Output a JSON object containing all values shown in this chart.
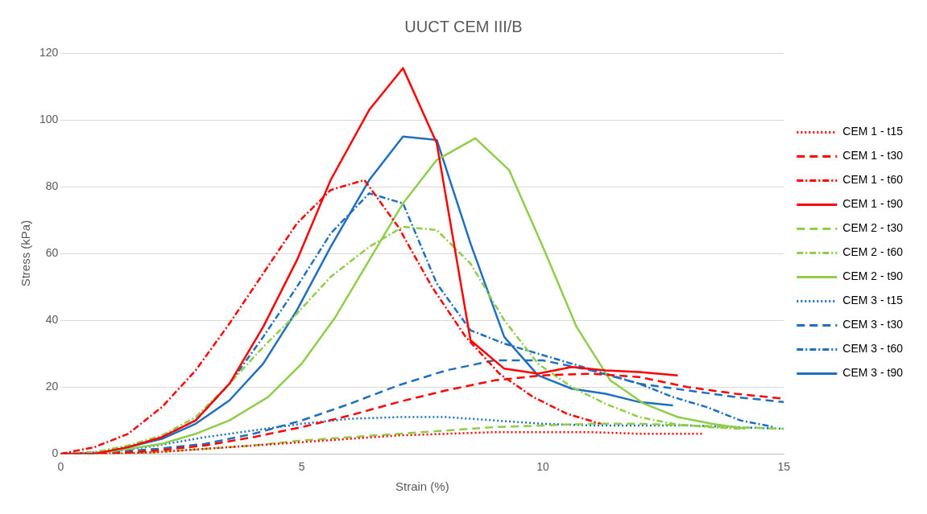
{
  "chart_data": {
    "type": "line",
    "title": "UUCT CEM III/B",
    "xlabel": "Strain (%)",
    "ylabel": "Stress (kPa)",
    "xlim": [
      0,
      15
    ],
    "xticks": [
      0,
      5,
      10,
      15
    ],
    "ylim": [
      0,
      120
    ],
    "yticks": [
      0,
      20,
      40,
      60,
      80,
      100,
      120
    ],
    "grid": "y",
    "legend": "right",
    "marker": "none",
    "series": [
      {
        "name": "CEM 1 - t15",
        "color": "#ff0000",
        "line_style": "dotted",
        "x": [
          0,
          1,
          2,
          3,
          4,
          5,
          6,
          7,
          8,
          9,
          10,
          11,
          12,
          13,
          13.3
        ],
        "values": [
          0,
          0,
          0.5,
          1.5,
          2.5,
          3.5,
          4.5,
          5.5,
          6,
          6.5,
          6.5,
          6.5,
          6,
          6,
          6
        ]
      },
      {
        "name": "CEM 1 - t30",
        "color": "#ff0000",
        "line_style": "dashed",
        "x": [
          0,
          1,
          2,
          3,
          4,
          5,
          6,
          7,
          8,
          9,
          10,
          11,
          12,
          13,
          14,
          15
        ],
        "values": [
          0,
          0,
          1,
          2.5,
          5,
          8,
          11.5,
          15.5,
          19,
          22,
          23.5,
          24,
          23,
          20,
          18,
          16.5
        ]
      },
      {
        "name": "CEM 1 - t60",
        "color": "#ff0000",
        "line_style": "dashdot",
        "x": [
          0,
          0.7,
          1.4,
          2.1,
          2.8,
          3.5,
          4.2,
          4.9,
          5.6,
          6.3,
          7,
          7.7,
          8.4,
          9.1,
          9.8,
          10.5,
          11.2
        ],
        "values": [
          0,
          2,
          6,
          14,
          25,
          39,
          54,
          69,
          79,
          82,
          68,
          50,
          35,
          24,
          17,
          12,
          9
        ]
      },
      {
        "name": "CEM 1 - t90",
        "color": "#ff0000",
        "line_style": "solid",
        "x": [
          0,
          0.7,
          1.4,
          2.1,
          2.8,
          3.5,
          4.2,
          4.9,
          5.6,
          6.4,
          7.1,
          7.8,
          8.5,
          9.2,
          9.9,
          10.6,
          11.3,
          12,
          12.8
        ],
        "values": [
          0,
          0,
          2,
          5,
          10,
          21,
          38,
          58,
          82,
          103,
          115.5,
          93,
          34,
          25.5,
          24,
          26,
          25,
          24.5,
          23.5
        ]
      },
      {
        "name": "CEM 2 - t30",
        "color": "#8fce4a",
        "line_style": "dashed",
        "x": [
          0,
          1,
          2,
          3,
          4,
          5,
          6,
          7,
          8,
          9,
          10,
          11,
          12,
          13,
          14,
          15
        ],
        "values": [
          0,
          0,
          0.5,
          1.5,
          2.5,
          4,
          5,
          6,
          7,
          8,
          8.5,
          9,
          9,
          8.5,
          8,
          7.5
        ]
      },
      {
        "name": "CEM 2 - t60",
        "color": "#8fce4a",
        "line_style": "dashdot",
        "x": [
          0,
          0.7,
          1.4,
          2.1,
          2.8,
          3.5,
          4.2,
          4.9,
          5.6,
          6.4,
          7.1,
          7.8,
          8.5,
          9.2,
          9.9,
          10.6,
          11.3,
          12,
          12.7,
          13.4,
          14.1
        ],
        "values": [
          0,
          0.5,
          2.5,
          5.5,
          11,
          21,
          32,
          42,
          53,
          62,
          68,
          67,
          57,
          40,
          27,
          20,
          15,
          11,
          9,
          8,
          7.5
        ]
      },
      {
        "name": "CEM 2 - t90",
        "color": "#8fce4a",
        "line_style": "solid",
        "x": [
          0,
          0.7,
          1.4,
          2.1,
          2.8,
          3.5,
          4.3,
          5,
          5.7,
          6.4,
          7.1,
          7.8,
          8.6,
          9.3,
          10,
          10.7,
          11.4,
          12.1,
          12.8,
          13.5,
          14.2
        ],
        "values": [
          0,
          0,
          1.5,
          3,
          6,
          10,
          17,
          27,
          41,
          58,
          75,
          88,
          94.5,
          85,
          62,
          38,
          22,
          15,
          11,
          9,
          7.5
        ]
      },
      {
        "name": "CEM 3 - t15",
        "color": "#1f6fc0",
        "line_style": "dotted",
        "x": [
          0,
          1,
          2,
          3,
          4,
          5,
          6,
          7,
          8,
          9,
          10,
          11,
          12,
          13,
          14,
          15
        ],
        "values": [
          0,
          0.5,
          2.5,
          5,
          7,
          9,
          10.5,
          11,
          11,
          10,
          9,
          8.5,
          8.5,
          8.5,
          8,
          7.5
        ]
      },
      {
        "name": "CEM 3 - t30",
        "color": "#1f6fc0",
        "line_style": "dashed",
        "x": [
          0,
          1,
          2,
          3,
          4,
          5,
          6,
          7,
          8,
          9,
          10,
          11,
          12,
          13,
          14,
          15
        ],
        "values": [
          0,
          0.5,
          1.5,
          3,
          6,
          10,
          15,
          20.5,
          25,
          28,
          28,
          25,
          21,
          19,
          17,
          15.5
        ]
      },
      {
        "name": "CEM 3 - t60",
        "color": "#1f6fc0",
        "line_style": "dashdot",
        "x": [
          0,
          0.7,
          1.4,
          2.1,
          2.8,
          3.5,
          4.2,
          4.9,
          5.6,
          6.4,
          7.1,
          7.8,
          8.5,
          9.2,
          9.9,
          10.6,
          11.3,
          12,
          12.7,
          13.4,
          14.1,
          14.8
        ],
        "values": [
          0,
          0.5,
          2,
          5,
          10,
          21,
          35,
          50,
          66,
          78,
          75,
          51,
          37,
          33,
          30,
          27,
          24,
          21,
          17,
          14,
          10,
          8
        ]
      },
      {
        "name": "CEM 3 - t90",
        "color": "#1f6fc0",
        "line_style": "solid",
        "x": [
          0,
          0.7,
          1.4,
          2.1,
          2.8,
          3.5,
          4.2,
          4.9,
          5.6,
          6.4,
          7.1,
          7.8,
          8.5,
          9.2,
          9.9,
          10.6,
          11.3,
          12,
          12.7
        ],
        "values": [
          0,
          0,
          2,
          4.5,
          9,
          16,
          27,
          43,
          62,
          82,
          95,
          94,
          63,
          35,
          23.5,
          19.5,
          18,
          15.5,
          14.5
        ]
      }
    ]
  }
}
